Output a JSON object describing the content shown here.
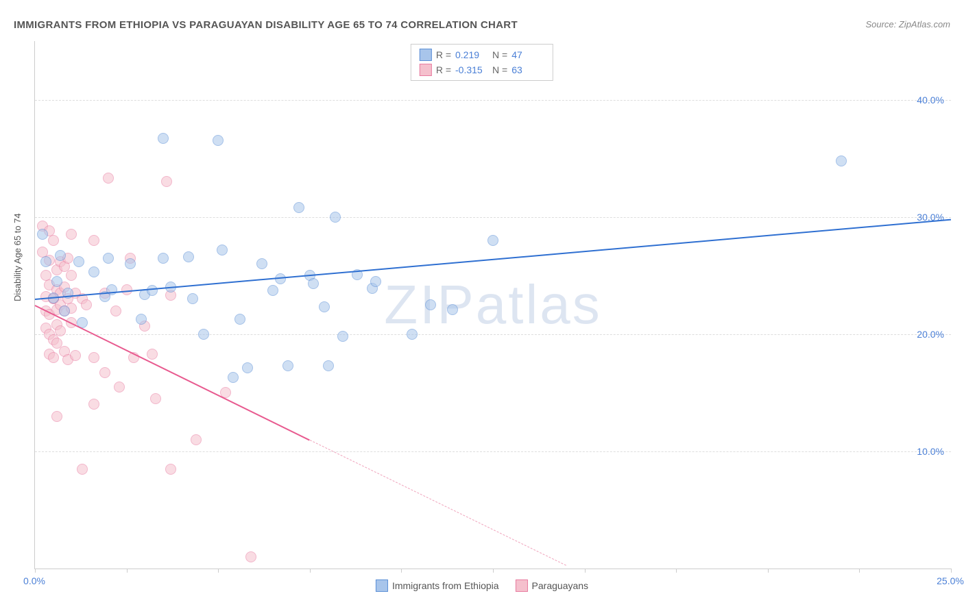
{
  "title": "IMMIGRANTS FROM ETHIOPIA VS PARAGUAYAN DISABILITY AGE 65 TO 74 CORRELATION CHART",
  "source": "Source: ZipAtlas.com",
  "ylabel": "Disability Age 65 to 74",
  "watermark": "ZIPatlas",
  "chart": {
    "type": "scatter",
    "xlim": [
      0,
      25
    ],
    "ylim": [
      0,
      45
    ],
    "xticks": [
      0,
      2.5,
      5,
      7.5,
      10,
      12.5,
      15,
      17.5,
      20,
      22.5,
      25
    ],
    "xtick_labels_visible": {
      "0": "0.0%",
      "25": "25.0%"
    },
    "yticks": [
      10,
      20,
      30,
      40
    ],
    "ytick_labels": [
      "10.0%",
      "20.0%",
      "30.0%",
      "40.0%"
    ],
    "grid_color": "#dddddd",
    "background_color": "#ffffff",
    "axis_color": "#cccccc",
    "tick_label_color": "#4a7fd6",
    "point_radius": 8,
    "point_opacity": 0.55,
    "series": [
      {
        "name": "Immigrants from Ethiopia",
        "fill": "#a8c5eb",
        "stroke": "#5b8fd6",
        "r_value": "0.219",
        "n_value": "47",
        "trend": {
          "x1": 0,
          "y1": 23.0,
          "x2": 25,
          "y2": 29.8,
          "color": "#2e6fd1"
        },
        "points": [
          [
            0.3,
            26.2
          ],
          [
            0.5,
            23.1
          ],
          [
            0.6,
            24.5
          ],
          [
            0.7,
            26.7
          ],
          [
            0.8,
            22.0
          ],
          [
            0.9,
            23.5
          ],
          [
            1.2,
            26.2
          ],
          [
            1.3,
            21.0
          ],
          [
            1.6,
            25.3
          ],
          [
            1.9,
            23.2
          ],
          [
            2.0,
            26.5
          ],
          [
            2.1,
            23.8
          ],
          [
            2.6,
            26.0
          ],
          [
            2.9,
            21.3
          ],
          [
            3.0,
            23.4
          ],
          [
            3.2,
            23.7
          ],
          [
            3.5,
            36.7
          ],
          [
            3.5,
            26.5
          ],
          [
            3.7,
            24.0
          ],
          [
            4.2,
            26.6
          ],
          [
            4.3,
            23.0
          ],
          [
            4.6,
            20.0
          ],
          [
            5.0,
            36.5
          ],
          [
            5.1,
            27.2
          ],
          [
            5.4,
            16.3
          ],
          [
            5.6,
            21.3
          ],
          [
            5.8,
            17.1
          ],
          [
            6.2,
            26.0
          ],
          [
            6.5,
            23.7
          ],
          [
            6.7,
            24.7
          ],
          [
            6.9,
            17.3
          ],
          [
            7.2,
            30.8
          ],
          [
            7.5,
            25.0
          ],
          [
            7.6,
            24.3
          ],
          [
            7.9,
            22.3
          ],
          [
            8.0,
            17.3
          ],
          [
            8.2,
            30.0
          ],
          [
            8.4,
            19.8
          ],
          [
            8.8,
            25.1
          ],
          [
            9.2,
            23.9
          ],
          [
            9.3,
            24.5
          ],
          [
            10.3,
            20.0
          ],
          [
            10.8,
            22.5
          ],
          [
            11.4,
            22.1
          ],
          [
            12.5,
            28.0
          ],
          [
            22.0,
            34.8
          ],
          [
            0.2,
            28.5
          ]
        ]
      },
      {
        "name": "Paraguayans",
        "fill": "#f5c0cd",
        "stroke": "#e87ba0",
        "r_value": "-0.315",
        "n_value": "63",
        "trend_solid": {
          "x1": 0,
          "y1": 22.5,
          "x2": 7.5,
          "y2": 11.0,
          "color": "#e85a8f"
        },
        "trend_dash": {
          "x1": 7.5,
          "y1": 11.0,
          "x2": 14.5,
          "y2": 0.3,
          "color": "#f0a5bd"
        },
        "points": [
          [
            0.2,
            29.2
          ],
          [
            0.2,
            27.0
          ],
          [
            0.3,
            25.0
          ],
          [
            0.3,
            23.2
          ],
          [
            0.3,
            22.0
          ],
          [
            0.3,
            20.5
          ],
          [
            0.4,
            28.8
          ],
          [
            0.4,
            26.3
          ],
          [
            0.4,
            24.2
          ],
          [
            0.4,
            21.7
          ],
          [
            0.4,
            20.0
          ],
          [
            0.4,
            18.3
          ],
          [
            0.5,
            28.0
          ],
          [
            0.5,
            23.0
          ],
          [
            0.5,
            23.0
          ],
          [
            0.5,
            19.5
          ],
          [
            0.5,
            18.0
          ],
          [
            0.6,
            25.5
          ],
          [
            0.6,
            23.8
          ],
          [
            0.6,
            22.1
          ],
          [
            0.6,
            20.8
          ],
          [
            0.6,
            19.2
          ],
          [
            0.6,
            13.0
          ],
          [
            0.7,
            26.2
          ],
          [
            0.7,
            23.5
          ],
          [
            0.7,
            22.5
          ],
          [
            0.7,
            20.3
          ],
          [
            0.8,
            25.8
          ],
          [
            0.8,
            24.0
          ],
          [
            0.8,
            22.0
          ],
          [
            0.8,
            18.5
          ],
          [
            0.9,
            26.5
          ],
          [
            0.9,
            23.0
          ],
          [
            0.9,
            17.8
          ],
          [
            1.0,
            28.5
          ],
          [
            1.0,
            25.0
          ],
          [
            1.0,
            22.2
          ],
          [
            1.0,
            21.0
          ],
          [
            1.1,
            23.5
          ],
          [
            1.1,
            18.2
          ],
          [
            1.3,
            23.0
          ],
          [
            1.3,
            8.5
          ],
          [
            1.4,
            22.5
          ],
          [
            1.6,
            28.0
          ],
          [
            1.6,
            18.0
          ],
          [
            1.6,
            14.0
          ],
          [
            1.9,
            23.5
          ],
          [
            1.9,
            16.7
          ],
          [
            2.0,
            33.3
          ],
          [
            2.2,
            22.0
          ],
          [
            2.3,
            15.5
          ],
          [
            2.5,
            23.8
          ],
          [
            2.6,
            26.5
          ],
          [
            2.7,
            18.0
          ],
          [
            3.0,
            20.7
          ],
          [
            3.2,
            18.3
          ],
          [
            3.3,
            14.5
          ],
          [
            3.6,
            33.0
          ],
          [
            3.7,
            23.3
          ],
          [
            3.7,
            8.5
          ],
          [
            4.4,
            11.0
          ],
          [
            5.2,
            15.0
          ],
          [
            5.9,
            1.0
          ]
        ]
      }
    ]
  },
  "legend_bottom": [
    {
      "label": "Immigrants from Ethiopia",
      "fill": "#a8c5eb",
      "stroke": "#5b8fd6"
    },
    {
      "label": "Paraguayans",
      "fill": "#f5c0cd",
      "stroke": "#e87ba0"
    }
  ]
}
